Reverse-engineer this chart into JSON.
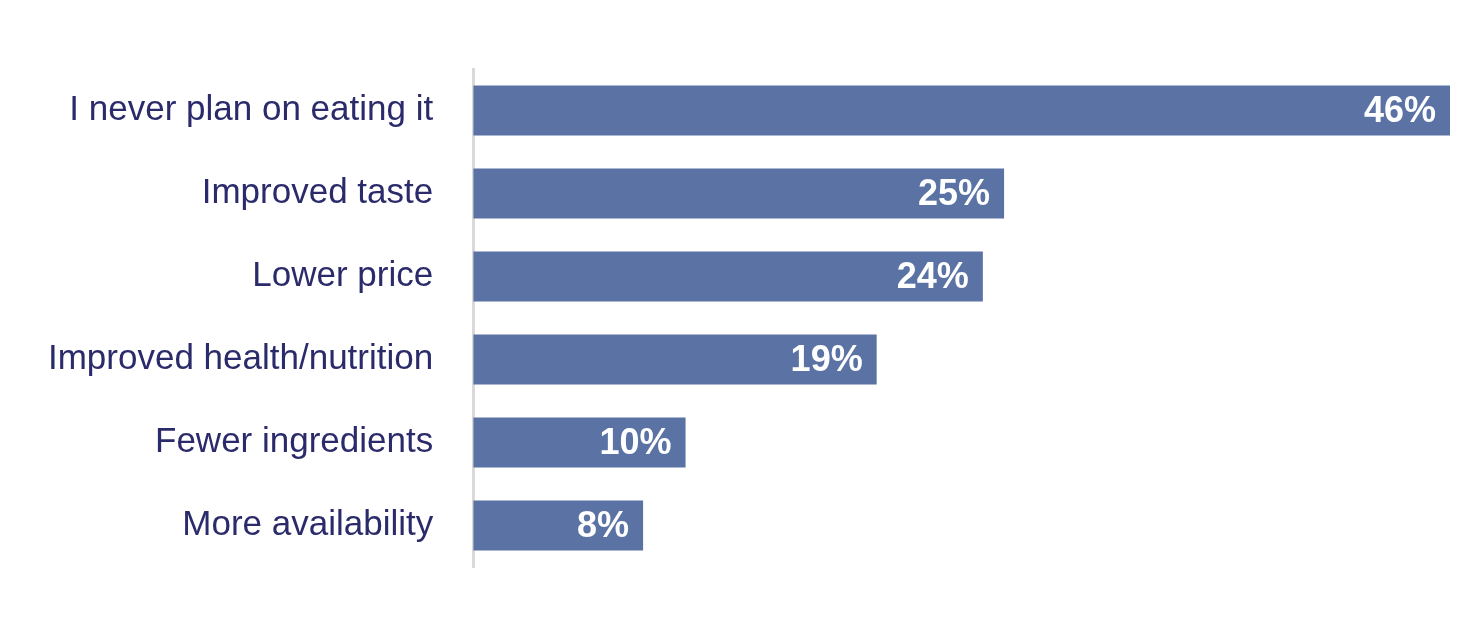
{
  "chart_data": {
    "type": "bar",
    "orientation": "horizontal",
    "categories": [
      "I never plan on eating it",
      "Improved taste",
      "Lower price",
      "Improved health/nutrition",
      "Fewer ingredients",
      "More availability"
    ],
    "values": [
      46,
      25,
      24,
      19,
      10,
      8
    ],
    "value_labels": [
      "46%",
      "25%",
      "24%",
      "19%",
      "10%",
      "8%"
    ],
    "color": "#5b73a4",
    "xlim": [
      0,
      46
    ],
    "tick_labels": "y"
  }
}
